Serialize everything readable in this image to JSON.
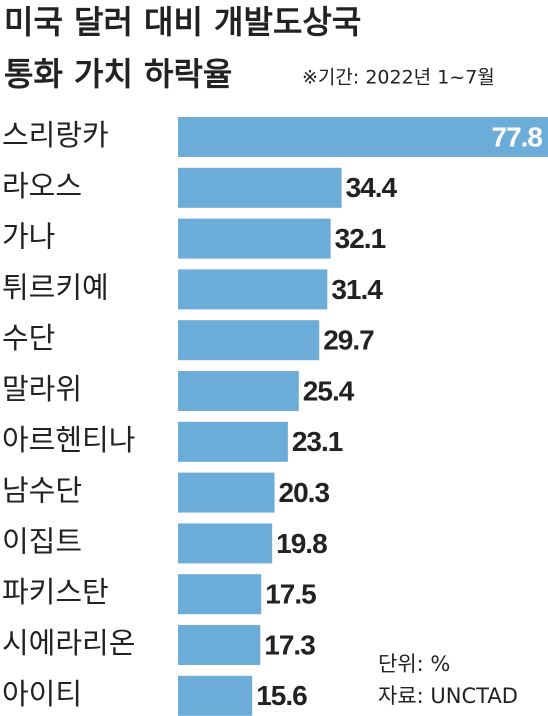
{
  "chart_data": {
    "type": "bar",
    "orientation": "horizontal",
    "title": [
      "미국 달러 대비 개발도상국",
      "통화 가치 하락율"
    ],
    "subtitle": "※기간: 2022년 1~7월",
    "notes": [
      "단위: %",
      "자료: UNCTAD"
    ],
    "categories": [
      "스리랑카",
      "라오스",
      "가나",
      "튀르키예",
      "수단",
      "말라위",
      "아르헨티나",
      "남수단",
      "이집트",
      "파키스탄",
      "시에라리온",
      "아이티"
    ],
    "values": [
      77.8,
      34.4,
      32.1,
      31.4,
      29.7,
      25.4,
      23.1,
      20.3,
      19.8,
      17.5,
      17.3,
      15.6
    ],
    "color": "#6badd8"
  }
}
